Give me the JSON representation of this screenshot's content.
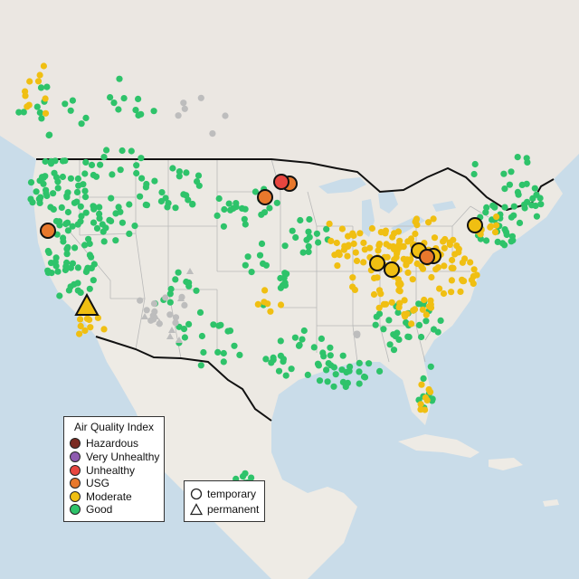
{
  "colors": {
    "water": "#c9dce9",
    "land": "#ece9e3",
    "canada_land": "#ebe7e2",
    "mexico_land": "#eeebe5",
    "greenery": "#dde6d2",
    "state_line": "#b9b9b9",
    "us_border": "#111111",
    "hazardous": "#7b2b22",
    "very_unhealthy": "#8e5bb0",
    "unhealthy": "#e8463f",
    "usg": "#e8782c",
    "moderate": "#f0bf12",
    "good": "#2ec36a",
    "no_data": "#bdbdbd"
  },
  "legend_aqi": {
    "title": "Air Quality Index",
    "items": [
      {
        "label": "Hazardous",
        "color": "#7b2b22"
      },
      {
        "label": "Very Unhealthy",
        "color": "#8e5bb0"
      },
      {
        "label": "Unhealthy",
        "color": "#e8463f"
      },
      {
        "label": "USG",
        "color": "#e8782c"
      },
      {
        "label": "Moderate",
        "color": "#f0bf12"
      },
      {
        "label": "Good",
        "color": "#2ec36a"
      }
    ]
  },
  "legend_type": {
    "items": [
      {
        "label": "temporary",
        "symbol": "circle-outline-icon"
      },
      {
        "label": "permanent",
        "symbol": "triangle-outline-icon"
      }
    ]
  }
}
